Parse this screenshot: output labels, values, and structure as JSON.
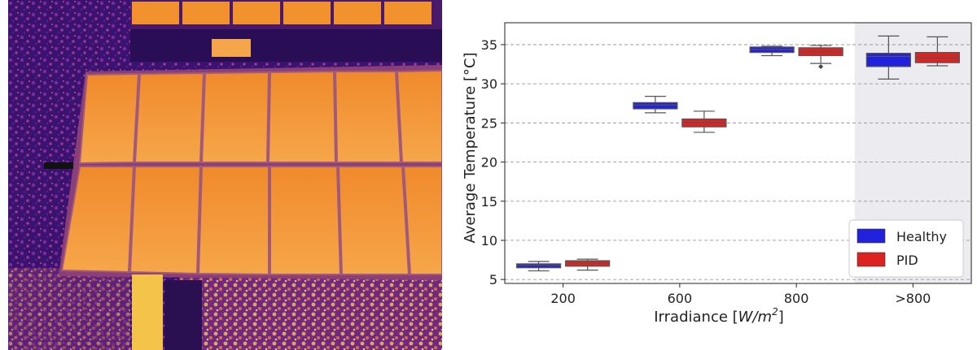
{
  "thermal_image": {
    "description_icon": "thermal-drone-image",
    "palette": {
      "panel_hot": "#f6a64a",
      "panel_warm": "#f08a2c",
      "panel_frame": "#a35a7a",
      "ground_dark": "#3a1370",
      "ground_mid": "#7e2a9a",
      "ground_hot": "#f4c44a"
    }
  },
  "chart_data": {
    "type": "box",
    "title": "",
    "xlabel": "Irradiance [W/m²]",
    "xlabel_plain": "Irradiance [",
    "xlabel_unit": "W/m",
    "xlabel_exp": "2",
    "xlabel_close": "]",
    "ylabel": "Average Temperature [°C]",
    "ylim": [
      4.5,
      37.8
    ],
    "yticks": [
      5,
      10,
      15,
      20,
      25,
      30,
      35
    ],
    "ytick_labels": [
      "5",
      "10",
      "15",
      "20",
      "25",
      "30",
      "35"
    ],
    "grid": "horizontal-dashed",
    "categories": [
      "200",
      "600",
      "800",
      ">800"
    ],
    "highlighted_category": ">800",
    "legend_position": "lower-right",
    "series": [
      {
        "name": "Healthy",
        "color": "#2222dd",
        "boxes": [
          {
            "whislo": 6.1,
            "q1": 6.5,
            "med": 6.8,
            "q3": 7.0,
            "whishi": 7.3,
            "fliers": []
          },
          {
            "whislo": 26.3,
            "q1": 26.8,
            "med": 27.3,
            "q3": 27.6,
            "whishi": 28.4,
            "fliers": []
          },
          {
            "whislo": 33.6,
            "q1": 34.0,
            "med": 34.4,
            "q3": 34.7,
            "whishi": 34.8,
            "fliers": []
          },
          {
            "whislo": 30.6,
            "q1": 32.2,
            "med": 33.5,
            "q3": 33.9,
            "whishi": 36.1,
            "fliers": []
          }
        ]
      },
      {
        "name": "PID",
        "color": "#dd2222",
        "boxes": [
          {
            "whislo": 6.2,
            "q1": 6.7,
            "med": 7.1,
            "q3": 7.4,
            "whishi": 7.6,
            "fliers": []
          },
          {
            "whislo": 23.8,
            "q1": 24.5,
            "med": 25.0,
            "q3": 25.5,
            "whishi": 26.5,
            "fliers": []
          },
          {
            "whislo": 32.6,
            "q1": 33.6,
            "med": 34.1,
            "q3": 34.6,
            "whishi": 34.9,
            "fliers": [
              32.2
            ]
          },
          {
            "whislo": 32.3,
            "q1": 32.7,
            "med": 33.3,
            "q3": 34.0,
            "whishi": 36.0,
            "fliers": []
          }
        ]
      }
    ]
  }
}
